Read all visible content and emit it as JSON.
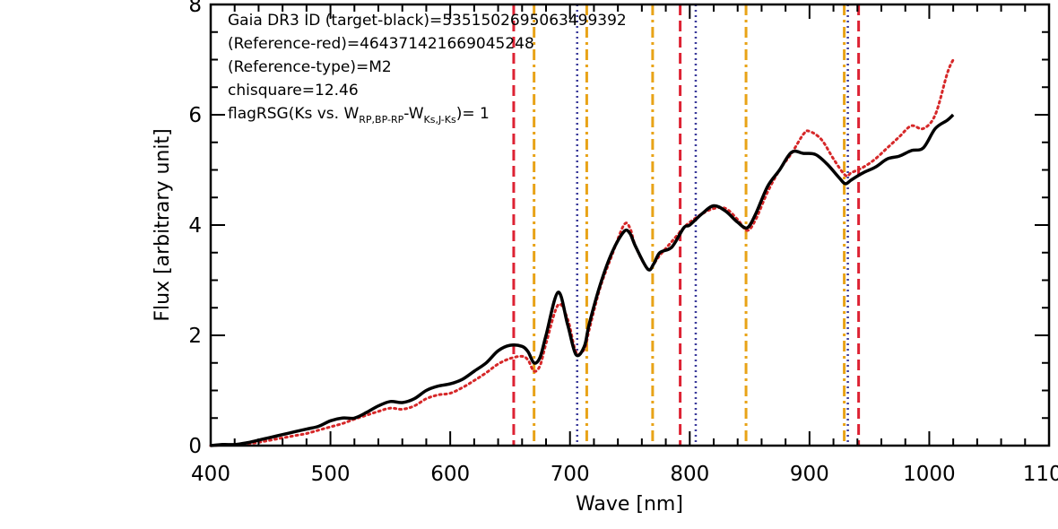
{
  "chart_data": {
    "type": "line",
    "xlabel": "Wave [nm]",
    "ylabel": "Flux [arbitrary unit]",
    "xlim": [
      400,
      1100
    ],
    "ylim": [
      0,
      8
    ],
    "x_ticks": [
      "400",
      "500",
      "600",
      "700",
      "800",
      "900",
      "1000",
      "1100"
    ],
    "y_ticks": [
      "0",
      "2",
      "4",
      "6",
      "8"
    ],
    "grid": false,
    "colors": {
      "target": "#000000",
      "reference": "#d62728",
      "red_lines": "#dd2233",
      "orange_lines": "#e8a317",
      "blue_lines": "#3a3a9a"
    },
    "annotations": {
      "line1": "Gaia DR3 ID (target-black)=5351502695063499392",
      "line2": "(Reference-red)=464371421669045248",
      "line3": "(Reference-type)=M2",
      "line4": "chisquare=12.46",
      "line5_pre": "flagRSG(Ks vs. W",
      "line5_sub1": "RP,BP-RP",
      "line5_mid": "-W",
      "line5_sub2": "Ks,J-Ks",
      "line5_post": ")= 1"
    },
    "vertical_lines": {
      "red_dashed": [
        653,
        792,
        941
      ],
      "orange_dashdot": [
        670,
        714,
        769,
        847,
        929
      ],
      "blue_dotted": [
        706,
        805,
        932
      ]
    },
    "series": [
      {
        "x": [
          400,
          410,
          420,
          430,
          440,
          450,
          460,
          470,
          480,
          490,
          500,
          510,
          520,
          530,
          540,
          550,
          560,
          570,
          580,
          590,
          600,
          610,
          620,
          630,
          640,
          650,
          660,
          665,
          670,
          675,
          680,
          690,
          698,
          705,
          712,
          716,
          725,
          735,
          745,
          750,
          755,
          765,
          770,
          775,
          785,
          795,
          800,
          810,
          820,
          830,
          840,
          848,
          855,
          865,
          875,
          885,
          895,
          905,
          915,
          925,
          930,
          935,
          945,
          955,
          965,
          975,
          985,
          995,
          1005,
          1015,
          1020
        ],
        "y": [
          0.0,
          0.02,
          0.02,
          0.05,
          0.1,
          0.15,
          0.2,
          0.25,
          0.3,
          0.35,
          0.45,
          0.5,
          0.5,
          0.6,
          0.72,
          0.8,
          0.78,
          0.85,
          1.0,
          1.08,
          1.12,
          1.2,
          1.35,
          1.5,
          1.72,
          1.82,
          1.8,
          1.7,
          1.5,
          1.6,
          2.0,
          2.78,
          2.2,
          1.65,
          1.8,
          2.2,
          2.9,
          3.5,
          3.88,
          3.85,
          3.6,
          3.2,
          3.3,
          3.5,
          3.6,
          3.95,
          4.0,
          4.2,
          4.35,
          4.25,
          4.05,
          3.95,
          4.2,
          4.7,
          5.0,
          5.32,
          5.3,
          5.28,
          5.1,
          4.85,
          4.75,
          4.82,
          4.95,
          5.05,
          5.2,
          5.25,
          5.35,
          5.4,
          5.75,
          5.9,
          6.0
        ]
      },
      {
        "x": [
          400,
          410,
          420,
          430,
          440,
          450,
          460,
          470,
          480,
          490,
          500,
          510,
          520,
          530,
          540,
          550,
          560,
          570,
          580,
          590,
          600,
          610,
          620,
          630,
          640,
          650,
          660,
          665,
          670,
          675,
          680,
          690,
          698,
          705,
          712,
          716,
          725,
          735,
          745,
          750,
          755,
          765,
          770,
          775,
          785,
          795,
          800,
          810,
          820,
          830,
          840,
          848,
          855,
          865,
          875,
          885,
          895,
          900,
          910,
          920,
          930,
          935,
          945,
          955,
          965,
          975,
          985,
          995,
          1005,
          1015,
          1020
        ],
        "y": [
          0.0,
          0.01,
          0.01,
          0.03,
          0.06,
          0.1,
          0.14,
          0.18,
          0.22,
          0.28,
          0.34,
          0.4,
          0.48,
          0.55,
          0.62,
          0.68,
          0.66,
          0.72,
          0.85,
          0.92,
          0.95,
          1.05,
          1.18,
          1.32,
          1.48,
          1.58,
          1.62,
          1.55,
          1.35,
          1.45,
          1.85,
          2.55,
          2.3,
          1.7,
          1.75,
          2.1,
          2.85,
          3.45,
          4.0,
          3.95,
          3.6,
          3.2,
          3.3,
          3.45,
          3.7,
          3.95,
          4.05,
          4.2,
          4.3,
          4.3,
          4.1,
          3.9,
          4.1,
          4.6,
          5.0,
          5.3,
          5.65,
          5.7,
          5.55,
          5.2,
          4.9,
          4.95,
          5.05,
          5.2,
          5.4,
          5.6,
          5.8,
          5.75,
          6.0,
          6.75,
          7.0
        ]
      }
    ]
  }
}
